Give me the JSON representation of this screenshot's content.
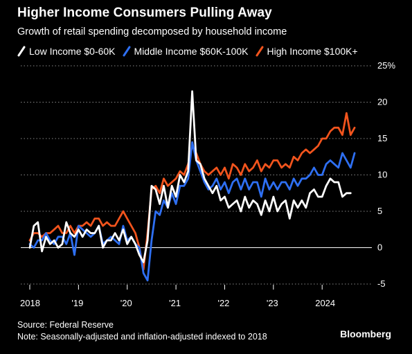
{
  "header": {
    "title": "Higher Income Consumers Pulling Away",
    "subtitle": "Growth of retail spending decomposed by household income"
  },
  "legend": [
    {
      "label": "Low Income $0-60K",
      "color": "#ffffff",
      "icon": "slash-line-icon"
    },
    {
      "label": "Middle Income $60K-100K",
      "color": "#2e6ff2",
      "icon": "slash-line-icon"
    },
    {
      "label": "High Income $100K+",
      "color": "#f2541d",
      "icon": "slash-line-icon"
    }
  ],
  "footer": {
    "source": "Source: Federal Reserve",
    "note": "Note: Seasonally-adjusted and inflation-adjusted indexed to 2018",
    "brand": "Bloomberg"
  },
  "chart_data": {
    "type": "line",
    "title": "Higher Income Consumers Pulling Away",
    "subtitle": "Growth of retail spending decomposed by household income",
    "ylim": [
      -5,
      25
    ],
    "yticks": [
      -5,
      0,
      5,
      10,
      15,
      20,
      25
    ],
    "ytick_labels": [
      "-5",
      "0",
      "5",
      "10",
      "15",
      "20",
      "25%"
    ],
    "xlim": [
      2018.0,
      2024.75
    ],
    "xticks": [
      2018,
      2019,
      2020,
      2021,
      2022,
      2023,
      2024
    ],
    "xtick_labels": [
      "2018",
      "'19",
      "'20",
      "'21",
      "'22",
      "'23",
      "2024"
    ],
    "grid": "dotted horizontal",
    "legend_position": "top",
    "series": [
      {
        "name": "Low Income $0-60K",
        "color": "#ffffff",
        "values": [
          0,
          3,
          3.5,
          -0.5,
          1.5,
          0.5,
          1,
          0,
          0.5,
          3.5,
          2,
          1.5,
          2.5,
          1.5,
          2.5,
          2,
          2,
          3,
          0,
          1,
          1,
          2,
          1,
          2.5,
          0.5,
          1.5,
          0.5,
          -1,
          -2,
          1,
          8.5,
          8,
          6,
          8.5,
          5.5,
          8.5,
          7,
          10,
          9,
          10.5,
          21.5,
          12,
          11.5,
          9.5,
          8.5,
          7.5,
          8.5,
          6.5,
          7,
          5.5,
          6,
          6.5,
          5,
          7,
          5.5,
          6.5,
          6,
          4.5,
          6.5,
          5,
          7,
          5,
          6,
          6.5,
          4,
          6.5,
          5.5,
          6.5,
          5.5,
          7.5,
          8,
          7,
          7,
          8.5,
          9.5,
          9,
          9,
          7,
          7.5,
          7.5
        ]
      },
      {
        "name": "Middle Income $60K-100K",
        "color": "#2e6ff2",
        "values": [
          0.5,
          0,
          1,
          1,
          2,
          1,
          0.5,
          1.5,
          1.5,
          0.5,
          2,
          -1,
          3,
          2.5,
          2,
          1.5,
          2,
          3,
          0.5,
          1,
          1.5,
          1,
          0.5,
          3,
          1,
          1.5,
          0.5,
          0,
          -3.5,
          -4.5,
          1,
          5,
          4.5,
          6.5,
          5.5,
          7.5,
          6,
          8.5,
          8.5,
          9.5,
          14.5,
          12,
          10.5,
          9,
          8,
          8.5,
          9.5,
          8,
          9,
          7.5,
          9,
          9.5,
          8,
          9.5,
          8,
          9,
          9,
          7,
          9.5,
          8,
          9,
          8,
          9,
          9,
          8,
          9.5,
          8.5,
          9.5,
          9.5,
          10,
          11,
          10,
          10,
          11.5,
          12,
          11.5,
          11,
          13,
          12,
          11,
          13
        ]
      },
      {
        "name": "High Income $100K+",
        "color": "#f2541d",
        "values": [
          1,
          2,
          2,
          1.5,
          2,
          2,
          2.5,
          3,
          2,
          2,
          3,
          2,
          3,
          3,
          3.5,
          3,
          4,
          4,
          3,
          3.5,
          3,
          3,
          4,
          5,
          4,
          3,
          2,
          0,
          -3,
          2,
          8,
          8.5,
          7.5,
          9.5,
          8.5,
          9,
          9.5,
          10.5,
          10,
          11.5,
          14,
          13,
          11.5,
          10.5,
          10,
          10.5,
          11,
          10,
          11,
          9.5,
          11.5,
          11,
          10,
          11.5,
          10.5,
          11,
          12,
          10.5,
          11.5,
          11,
          12,
          12,
          11,
          11.5,
          11,
          12.5,
          12,
          13,
          13.5,
          13,
          13.5,
          14,
          15,
          15,
          16,
          16.5,
          16.5,
          15.5,
          18.5,
          15.5,
          16.5
        ]
      }
    ]
  }
}
